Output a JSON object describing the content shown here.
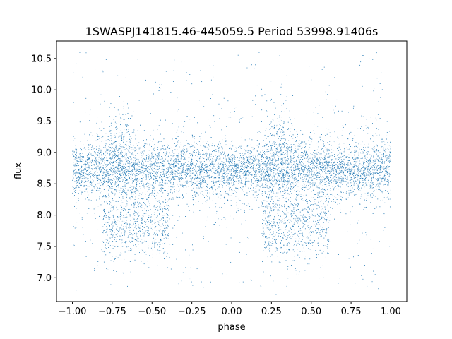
{
  "chart_data": {
    "type": "scatter",
    "title": "1SWASPJ141815.46-445059.5 Period 53998.91406s",
    "xlabel": "phase",
    "ylabel": "flux",
    "xlim": [
      -1.1,
      1.1
    ],
    "ylim": [
      6.62,
      10.78
    ],
    "xticks": [
      -1.0,
      -0.75,
      -0.5,
      -0.25,
      0.0,
      0.25,
      0.5,
      0.75,
      1.0
    ],
    "xtick_labels": [
      "−1.00",
      "−0.75",
      "−0.50",
      "−0.25",
      "0.00",
      "0.25",
      "0.50",
      "0.75",
      "1.00"
    ],
    "yticks": [
      7.0,
      7.5,
      8.0,
      8.5,
      9.0,
      9.5,
      10.0,
      10.5
    ],
    "ytick_labels": [
      "7.0",
      "7.5",
      "8.0",
      "8.5",
      "9.0",
      "9.5",
      "10.0",
      "10.5"
    ],
    "grid": false,
    "marker_color": "#1f77b4",
    "series": [
      {
        "x_range": [
          -1.0,
          1.0
        ],
        "baseline_flux": 8.72,
        "baseline_spread": 0.22,
        "secondary_dip_center_phases": [
          -0.6,
          0.4
        ],
        "secondary_dip_flux": 7.85,
        "outlier_range": [
          6.8,
          10.6
        ]
      }
    ]
  }
}
